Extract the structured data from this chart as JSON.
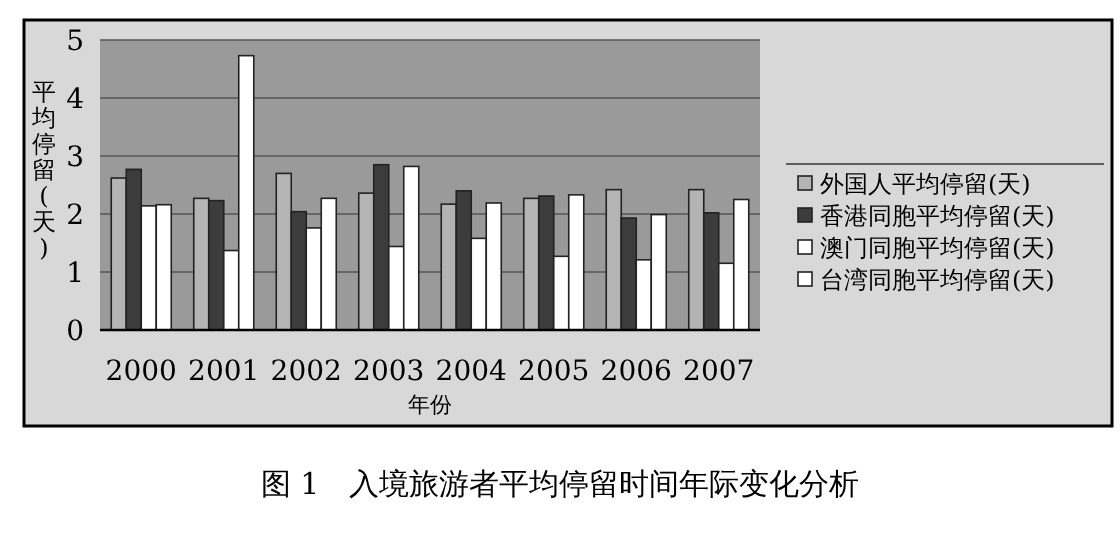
{
  "chart_data": {
    "type": "bar",
    "title": "图 1　入境旅游者平均停留时间年际变化分析",
    "xlabel": "年份",
    "ylabel": "平均停留(天)",
    "categories": [
      "2000",
      "2001",
      "2002",
      "2003",
      "2004",
      "2005",
      "2006",
      "2007"
    ],
    "series": [
      {
        "name": "外国人平均停留(天)",
        "color": "#b4b4b4",
        "values": [
          2.62,
          2.27,
          2.7,
          2.36,
          2.17,
          2.27,
          2.42,
          2.42
        ]
      },
      {
        "name": "香港同胞平均停留(天)",
        "color": "#3c3c3c",
        "values": [
          2.77,
          2.23,
          2.04,
          2.85,
          2.4,
          2.31,
          1.93,
          2.02
        ]
      },
      {
        "name": "澳门同胞平均停留(天)",
        "color": "#ffffff",
        "values": [
          2.14,
          1.37,
          1.76,
          1.44,
          1.58,
          1.27,
          1.21,
          1.15
        ]
      },
      {
        "name": "台湾同胞平均停留(天)",
        "color": "#ffffff",
        "values": [
          2.16,
          4.73,
          2.27,
          2.82,
          2.19,
          2.33,
          1.99,
          2.25
        ]
      }
    ],
    "ylim": [
      0,
      5
    ],
    "yticks": [
      0,
      1,
      2,
      3,
      4,
      5
    ],
    "grid": "y",
    "legend": "right"
  }
}
